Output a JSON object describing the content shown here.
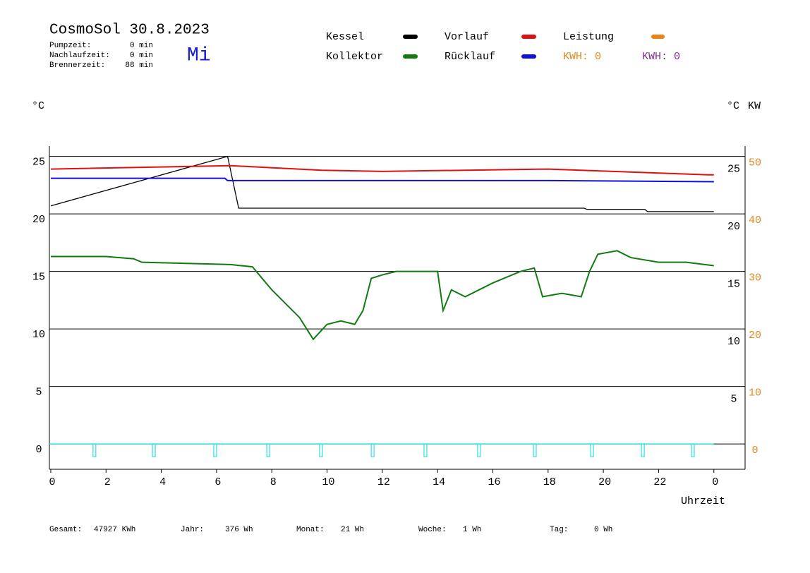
{
  "header": {
    "title": "CosmoSol 30.8.2023",
    "day": "Mi",
    "stats": [
      {
        "label": "Pumpzeit:",
        "value": "0 min"
      },
      {
        "label": "Nachlaufzeit:",
        "value": "0 min"
      },
      {
        "label": "Brennerzeit:",
        "value": "88 min"
      }
    ]
  },
  "footer": [
    {
      "label": "Gesamt:",
      "value": "47927 KWh"
    },
    {
      "label": "Jahr:",
      "value": "376 Wh"
    },
    {
      "label": "Monat:",
      "value": "21 Wh"
    },
    {
      "label": "Woche:",
      "value": "1 Wh"
    },
    {
      "label": "Tag:",
      "value": "0 Wh"
    }
  ],
  "chart_data": {
    "type": "line",
    "y_label": "°C",
    "y2_label_c": "°C",
    "y2_label": "KW",
    "x_label": "Uhrzeit",
    "xlim": [
      -0.05,
      25.13
    ],
    "xticks": [
      0,
      2,
      4,
      6,
      8,
      10,
      12,
      14,
      16,
      18,
      20,
      22,
      {
        "value": 24,
        "label": "0"
      }
    ],
    "ylim": [
      -2.2,
      25.9
    ],
    "yticks": [
      0,
      5,
      10,
      15,
      20,
      25
    ],
    "yticks_right": [
      5,
      10,
      15,
      20,
      25
    ],
    "y2lim": [
      -3.3,
      52.9
    ],
    "y2ticks": [
      0,
      10,
      20,
      30,
      40,
      50
    ],
    "y2_color": "#e08a1e",
    "grid": true,
    "series": [
      {
        "name": "Kessel",
        "color": "#000000",
        "x": [
          0,
          6.4,
          6.8,
          19.3,
          19.4,
          21.5,
          21.6,
          24
        ],
        "values": [
          20.7,
          25.0,
          20.5,
          20.5,
          20.4,
          20.4,
          20.2,
          20.2
        ]
      },
      {
        "name": "Kollektor",
        "color": "#107c10",
        "x": [
          0,
          2,
          3,
          3.3,
          6.5,
          7.3,
          8,
          8.5,
          9,
          9.5,
          10,
          10.5,
          11,
          11.3,
          11.6,
          12,
          12.5,
          13,
          14,
          14.2,
          14.5,
          15,
          16,
          17,
          17.5,
          17.8,
          18.5,
          19.2,
          19.5,
          19.8,
          20.5,
          21,
          22,
          23,
          24
        ],
        "values": [
          16.3,
          16.3,
          16.1,
          15.8,
          15.6,
          15.4,
          13.4,
          12.2,
          11.0,
          9.1,
          10.4,
          10.7,
          10.4,
          11.6,
          14.4,
          14.7,
          15.0,
          15.0,
          15.0,
          11.6,
          13.4,
          12.8,
          14.0,
          15.0,
          15.3,
          12.8,
          13.1,
          12.8,
          15.0,
          16.5,
          16.8,
          16.2,
          15.8,
          15.8,
          15.5
        ]
      },
      {
        "name": "Vorlauf",
        "color": "#e01010",
        "x": [
          0,
          6.5,
          9.8,
          12,
          18,
          23.8,
          24
        ],
        "values": [
          23.9,
          24.2,
          23.8,
          23.7,
          23.9,
          23.4,
          23.4
        ]
      },
      {
        "name": "Rücklauf",
        "color": "#1010e0",
        "x": [
          0,
          6.3,
          6.4,
          18,
          24
        ],
        "values": [
          23.1,
          23.1,
          22.9,
          22.9,
          22.8
        ]
      }
    ],
    "legend_extra": [
      {
        "name": "Leistung",
        "color": "#f08010"
      }
    ],
    "kwh": [
      {
        "text": "KWH: 0",
        "color": "#e08a1e"
      },
      {
        "text": "KWH: 0",
        "color": "#803090"
      }
    ],
    "pulses": {
      "color": "#30e0e0",
      "x": [
        1.58,
        3.73,
        5.95,
        7.87,
        9.78,
        11.65,
        13.56,
        15.5,
        17.52,
        19.59,
        21.43,
        23.24
      ],
      "values": [
        -1.1,
        -1.1,
        -1.1,
        -1.1,
        -1.1,
        -1.1,
        -1.1,
        -1.1,
        -1.1,
        -1.1,
        -1.1,
        -1.1
      ]
    }
  }
}
